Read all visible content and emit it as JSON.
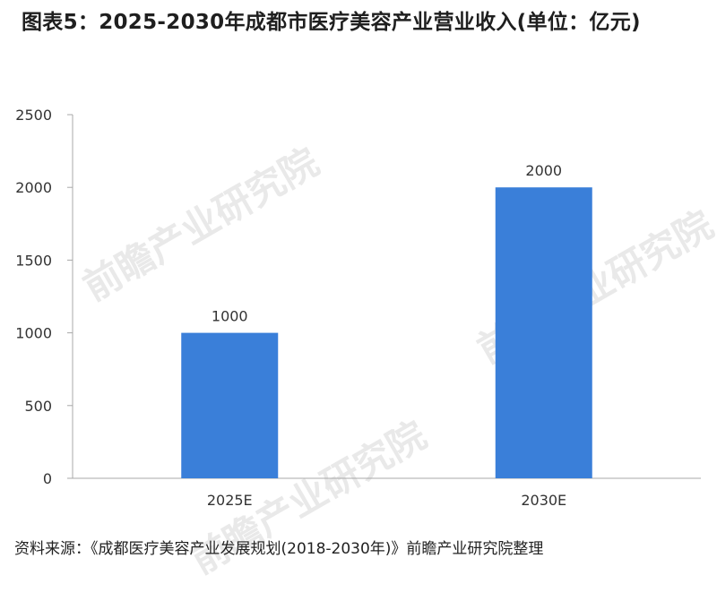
{
  "chart_data": {
    "type": "bar",
    "title": "图表5：2025-2030年成都市医疗美容产业营业收入(单位：亿元)",
    "categories": [
      "2025E",
      "2030E"
    ],
    "values": [
      1000,
      2000
    ],
    "data_labels": [
      "1000",
      "2000"
    ],
    "xlabel": "",
    "ylabel": "",
    "ylim": [
      0,
      2500
    ],
    "yticks": [
      0,
      500,
      1000,
      1500,
      2000,
      2500
    ],
    "grid": false,
    "legend": "none",
    "bar_color": "#3a7fd9"
  },
  "watermark": {
    "text": "前瞻产业研究院"
  },
  "source": "资料来源：《成都医疗美容产业发展规划(2018-2030年)》前瞻产业研究院整理"
}
